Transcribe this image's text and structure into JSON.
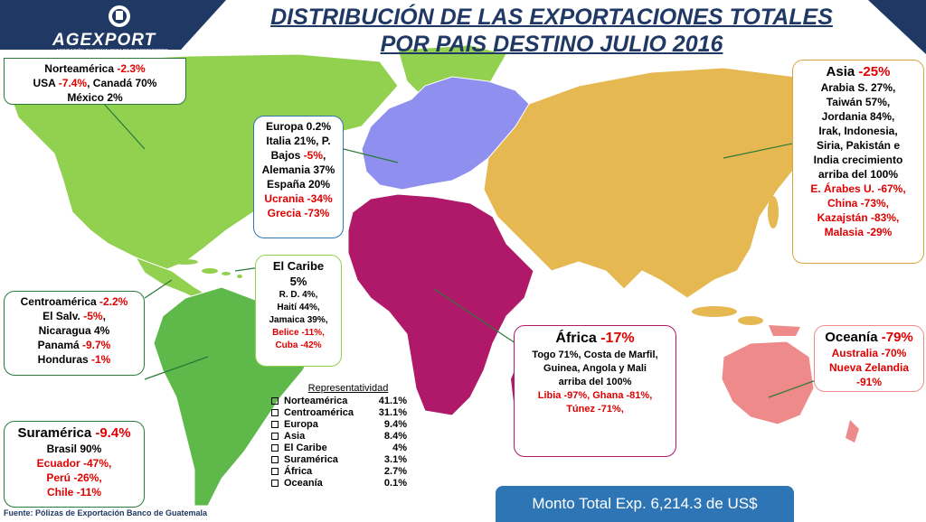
{
  "title": {
    "line1": "DISTRIBUCIÓN  DE LAS EXPORTACIONES TOTALES",
    "line2": "POR  PAIS DESTINO JULIO  2016"
  },
  "logo": {
    "name": "AGEXPORT",
    "tagline": "ASOCIACIÓN GUATEMALTECA DE EXPORTADORES"
  },
  "colors": {
    "north_america": "#92d050",
    "south_america": "#5fb94a",
    "europe": "#8f8fef",
    "africa": "#b0186a",
    "asia": "#e6b852",
    "oceania": "#ef8a8a",
    "header_navy": "#1f3864",
    "accent_red": "#e00000",
    "total_blue": "#2e75b6"
  },
  "regions": {
    "norteamerica": {
      "lines": [
        "Norteamérica  -2.3%",
        "USA -7.4%, Canadá  70%",
        "México 2%"
      ]
    },
    "europa": {
      "lines": [
        "Europa 0.2%",
        "Italia 21%, P.",
        "Bajos -5%,",
        "Alemania 37%",
        "España 20%"
      ],
      "red_lines": [
        "Ucrania -34%",
        "Grecia -73%"
      ]
    },
    "asia": {
      "header": "Asia  -25%",
      "lines": [
        "Arabia S. 27%,",
        "Taiwán 57%,",
        "Jordania 84%,",
        "Irak, Indonesia,",
        "Siria,  Pakistán e",
        "India  crecimiento",
        "arriba del 100%"
      ],
      "red_lines": [
        "E. Árabes U. -67%,",
        "China -73%,",
        "Kazajstán -83%,",
        "Malasia -29%"
      ]
    },
    "caribe": {
      "header": "El Caribe",
      "header2": "5%",
      "lines": [
        "R. D. 4%,",
        "Haití 44%,",
        "Jamaica 39%,"
      ],
      "red_lines": [
        "Belice -11%,",
        "Cuba -42%"
      ]
    },
    "centroamerica": {
      "lines": [
        "Centroamérica -2.2%",
        "El Salv. -5%,",
        "Nicaragua 4%",
        "Panamá -9.7%",
        "Honduras -1%"
      ]
    },
    "africa": {
      "header": "África -17%",
      "lines": [
        "Togo 71%, Costa de Marfil,",
        "Guinea, Angola  y Mali",
        "arriba del 100%"
      ],
      "red_lines": [
        "Libia -97%, Ghana -81%,",
        "Túnez -71%,"
      ]
    },
    "oceania": {
      "header": "Oceanía -79%",
      "red_lines": [
        "Australia -70%",
        "Nueva Zelandia",
        "-91%"
      ]
    },
    "suramerica": {
      "header": "Suramérica -9.4%",
      "lines": [
        "Brasil 90%"
      ],
      "red_lines": [
        "Ecuador -47%,",
        "Perú -26%,",
        "Chile -11%"
      ]
    }
  },
  "legend": {
    "title": "Representatividad",
    "items": [
      {
        "name": "Norteamérica",
        "pct": "41.1%"
      },
      {
        "name": "Centroamérica",
        "pct": "31.1%"
      },
      {
        "name": "Europa",
        "pct": "9.4%"
      },
      {
        "name": "Asia",
        "pct": "8.4%"
      },
      {
        "name": "El Caribe",
        "pct": "4%"
      },
      {
        "name": "Suramérica",
        "pct": "3.1%"
      },
      {
        "name": "África",
        "pct": "2.7%"
      },
      {
        "name": "Oceanía",
        "pct": "0.1%"
      }
    ]
  },
  "total": "Monto Total Exp.   6,214.3 de US$",
  "footer": "Fuente: Pólizas de Exportación Banco de Guatemala"
}
